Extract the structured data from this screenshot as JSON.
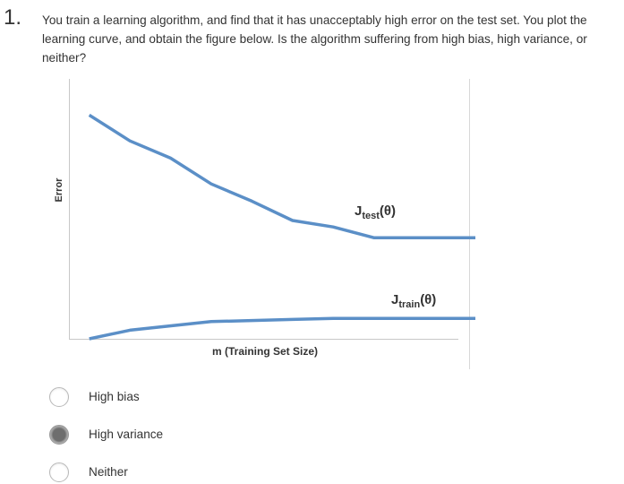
{
  "question": {
    "number": "1.",
    "text": "You train a learning algorithm, and find that it has unacceptably high error on the test set. You plot the learning curve, and obtain the figure below. Is the algorithm suffering from high bias, high variance, or neither?"
  },
  "figure": {
    "ylabel": "Error",
    "xlabel": "m (Training Set Size)",
    "test_label": {
      "main": "J",
      "sub": "test",
      "arg": "(θ)"
    },
    "train_label": {
      "main": "J",
      "sub": "train",
      "arg": "(θ)"
    },
    "line_color": "#5b8fc7"
  },
  "chart_data": {
    "type": "line",
    "xlabel": "m (Training Set Size)",
    "ylabel": "Error",
    "grid": false,
    "series": [
      {
        "name": "Jtest(θ)",
        "x": [
          0.05,
          0.15,
          0.25,
          0.35,
          0.45,
          0.55,
          0.65,
          0.75,
          0.85,
          1.0
        ],
        "y": [
          1.04,
          0.92,
          0.84,
          0.72,
          0.64,
          0.55,
          0.52,
          0.47,
          0.47,
          0.47
        ]
      },
      {
        "name": "Jtrain(θ)",
        "x": [
          0.05,
          0.15,
          0.35,
          0.45,
          0.55,
          0.65,
          0.75,
          0.85,
          1.0
        ],
        "y": [
          0.0,
          0.04,
          0.08,
          0.085,
          0.09,
          0.095,
          0.095,
          0.095,
          0.095
        ]
      }
    ],
    "xlim": [
      0,
      1.0
    ],
    "ylim": [
      0,
      1.0
    ]
  },
  "options": [
    {
      "label": "High bias",
      "checked": false
    },
    {
      "label": "High variance",
      "checked": true
    },
    {
      "label": "Neither",
      "checked": false
    }
  ]
}
